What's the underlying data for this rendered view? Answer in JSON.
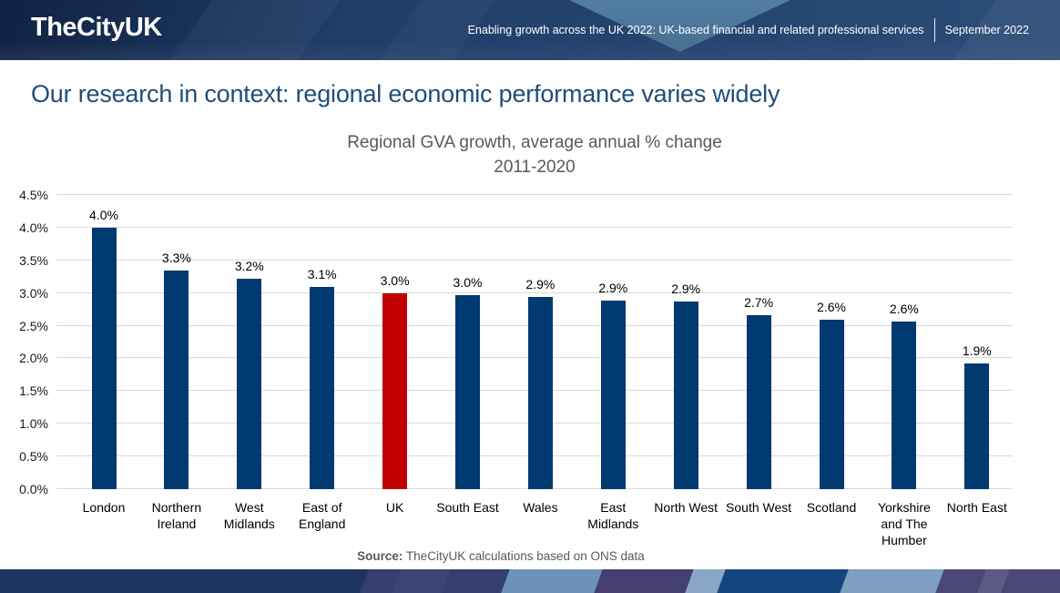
{
  "header": {
    "logo": "TheCityUK",
    "publication": "Enabling growth across the UK 2022: UK-based financial and related professional services",
    "date": "September 2022"
  },
  "page_title": "Our research in context: regional economic performance varies widely",
  "chart_data": {
    "type": "bar",
    "title": "Regional GVA growth, average annual % change",
    "subtitle": "2011-2020",
    "categories": [
      "London",
      "Northern Ireland",
      "West Midlands",
      "East of England",
      "UK",
      "South East",
      "Wales",
      "East Midlands",
      "North West",
      "South West",
      "Scotland",
      "Yorkshire and The Humber",
      "North East"
    ],
    "values": [
      4.0,
      3.3,
      3.2,
      3.1,
      3.0,
      3.0,
      2.9,
      2.9,
      2.9,
      2.7,
      2.6,
      2.6,
      1.9
    ],
    "values_estimated_precise": [
      4.0,
      3.34,
      3.22,
      3.1,
      3.0,
      2.97,
      2.94,
      2.88,
      2.87,
      2.66,
      2.59,
      2.56,
      1.92
    ],
    "labels": [
      "4.0%",
      "3.3%",
      "3.2%",
      "3.1%",
      "3.0%",
      "3.0%",
      "2.9%",
      "2.9%",
      "2.9%",
      "2.7%",
      "2.6%",
      "2.6%",
      "1.9%"
    ],
    "ylim": [
      0,
      4.5
    ],
    "yticks": [
      "0.0%",
      "0.5%",
      "1.0%",
      "1.5%",
      "2.0%",
      "2.5%",
      "3.0%",
      "3.5%",
      "4.0%",
      "4.5%"
    ],
    "grid": true,
    "legend": "none",
    "bar_color": "#003A70",
    "highlight_color": "#C00000",
    "highlight_index": 4,
    "gridline_color": "#D9D9D9"
  },
  "source": {
    "prefix": "Source:",
    "text": " TheCityUK calculations based on ONS data"
  },
  "colors": {
    "title_blue": "#1F4E79",
    "chart_gray": "#595959",
    "header_navy": "#21406b",
    "header_triangle": "#4d79a2"
  },
  "footer": {
    "stripe_colors": [
      "#1d3562",
      "#3b4474",
      "#6d92ba",
      "#453f71",
      "#8aa7c7",
      "#15457e",
      "#7e9ec2",
      "#4a4675",
      "#5d5a88"
    ]
  }
}
